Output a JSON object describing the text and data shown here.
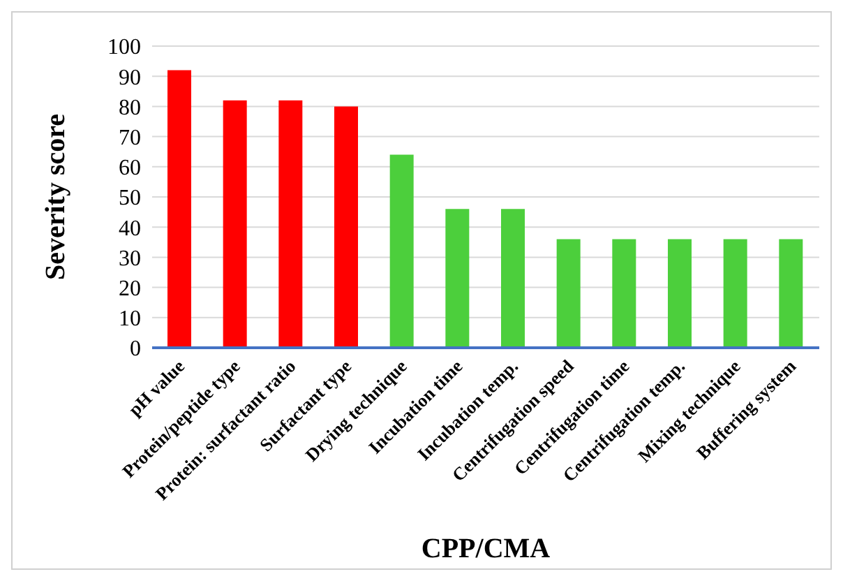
{
  "chart_data": {
    "type": "bar",
    "xlabel": "CPP/CMA",
    "ylabel": "Severity score",
    "categories": [
      "pH value",
      "Protein/peptide type",
      "Protein: surfactant ratio",
      "Surfactant type",
      "Drying technique",
      "Incubation time",
      "Incubation temp.",
      "Centrifugation speed",
      "Centrifugation time",
      "Centrifugation temp.",
      "Mixing technique",
      "Buffering system"
    ],
    "values": [
      92,
      82,
      82,
      80,
      64,
      46,
      46,
      36,
      36,
      36,
      36,
      36
    ],
    "colors": [
      "#ff0000",
      "#ff0000",
      "#ff0000",
      "#ff0000",
      "#4ccf3c",
      "#4ccf3c",
      "#4ccf3c",
      "#4ccf3c",
      "#4ccf3c",
      "#4ccf3c",
      "#4ccf3c",
      "#4ccf3c"
    ],
    "ylim": [
      0,
      100
    ],
    "yticks": [
      0,
      10,
      20,
      30,
      40,
      50,
      60,
      70,
      80,
      90,
      100
    ],
    "grid": "y"
  }
}
